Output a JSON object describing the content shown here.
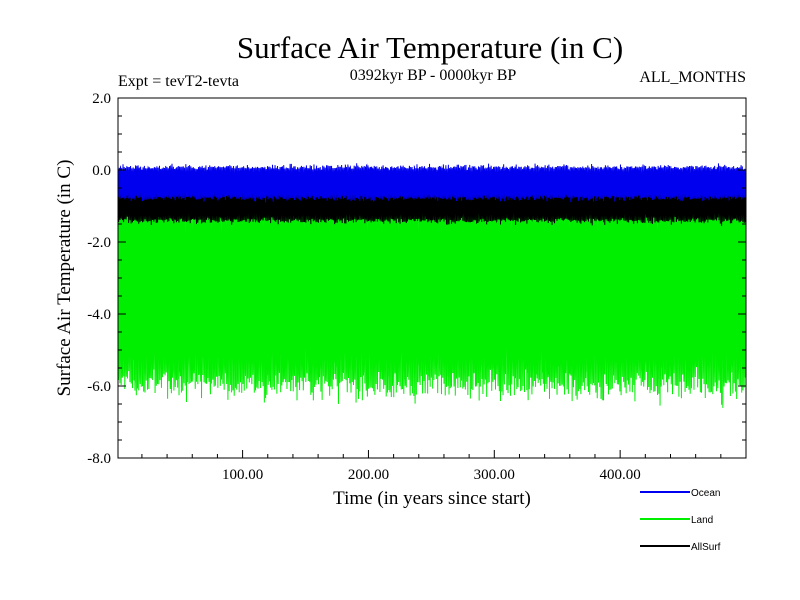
{
  "chart_data": {
    "type": "line",
    "title": "Surface Air Temperature (in C)",
    "subtitle_left": "Expt = tevT2-tevta",
    "subtitle_center": "0392kyr BP - 0000kyr BP",
    "subtitle_right": "ALL_MONTHS",
    "xlabel": "Time (in years since start)",
    "ylabel": "Surface Air Temperature (in C)",
    "xlim": [
      1,
      500
    ],
    "ylim": [
      -8.0,
      2.0
    ],
    "x_ticks": [
      100,
      200,
      300,
      400
    ],
    "x_tick_labels": [
      "100.00",
      "200.00",
      "300.00",
      "400.00"
    ],
    "y_ticks": [
      -8,
      -6,
      -4,
      -2,
      0,
      2
    ],
    "y_tick_labels": [
      "-8.0",
      "-6.0",
      "-4.0",
      "-2.0",
      "0.0",
      "2.0"
    ],
    "grid": false,
    "legend_position": "bottom-right-outside",
    "series": [
      {
        "name": "Land",
        "color": "#00ee00",
        "mean": -3.9,
        "upper_envelope": -0.3,
        "lower_envelope": -6.4,
        "min": -7.4,
        "max": 0.1
      },
      {
        "name": "AllSurf",
        "color": "#000000",
        "mean": -0.75,
        "upper_envelope": -0.2,
        "lower_envelope": -1.5,
        "min": -2.1,
        "max": 0.4
      },
      {
        "name": "Ocean",
        "color": "#0000ee",
        "mean": -0.35,
        "upper_envelope": 0.15,
        "lower_envelope": -0.85,
        "min": -1.0,
        "max": 0.7
      }
    ],
    "legend_order": [
      "Ocean",
      "Land",
      "AllSurf"
    ]
  }
}
